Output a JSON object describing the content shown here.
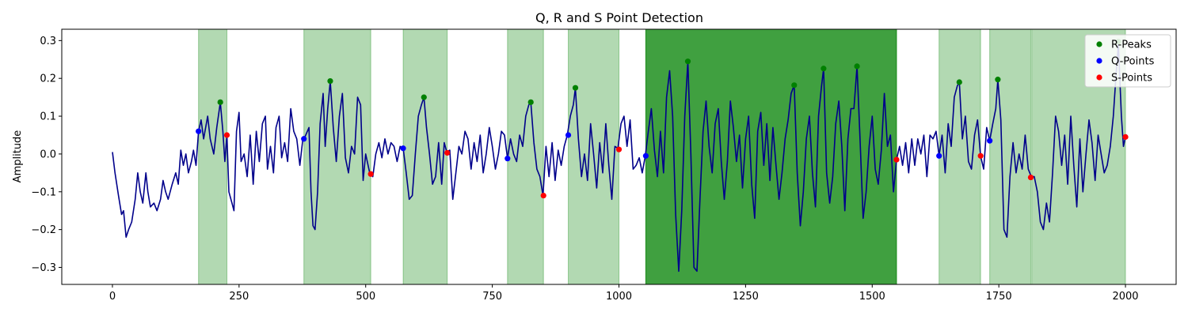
{
  "chart_data": {
    "type": "line",
    "title": "Q, R and S Point Detection",
    "xlabel": "",
    "ylabel": "Amplitude",
    "xlim": [
      -100,
      2100
    ],
    "ylim": [
      -0.345,
      0.33
    ],
    "xticks": [
      0,
      250,
      500,
      750,
      1000,
      1250,
      1500,
      1750,
      2000
    ],
    "yticks": [
      -0.3,
      -0.2,
      -0.1,
      0.0,
      0.1,
      0.2,
      0.3
    ],
    "xtick_labels": [
      "0",
      "250",
      "500",
      "750",
      "1000",
      "1250",
      "1500",
      "1750",
      "2000"
    ],
    "ytick_labels": [
      "−0.3",
      "−0.2",
      "−0.1",
      "0.0",
      "0.1",
      "0.2",
      "0.3"
    ],
    "grid": false,
    "legend_position": "top-right",
    "signal_color": "#00008b",
    "light_band_color": "#008000",
    "signal_keypoints": [
      [
        0,
        0.005
      ],
      [
        5,
        -0.05
      ],
      [
        12,
        -0.11
      ],
      [
        18,
        -0.16
      ],
      [
        22,
        -0.15
      ],
      [
        27,
        -0.22
      ],
      [
        32,
        -0.2
      ],
      [
        38,
        -0.18
      ],
      [
        45,
        -0.12
      ],
      [
        50,
        -0.05
      ],
      [
        55,
        -0.1
      ],
      [
        60,
        -0.13
      ],
      [
        66,
        -0.05
      ],
      [
        70,
        -0.1
      ],
      [
        75,
        -0.14
      ],
      [
        82,
        -0.13
      ],
      [
        88,
        -0.15
      ],
      [
        95,
        -0.12
      ],
      [
        100,
        -0.07
      ],
      [
        105,
        -0.1
      ],
      [
        110,
        -0.12
      ],
      [
        118,
        -0.08
      ],
      [
        125,
        -0.05
      ],
      [
        130,
        -0.08
      ],
      [
        135,
        0.01
      ],
      [
        140,
        -0.03
      ],
      [
        145,
        0.0
      ],
      [
        150,
        -0.05
      ],
      [
        156,
        -0.02
      ],
      [
        160,
        0.01
      ],
      [
        165,
        -0.03
      ],
      [
        170,
        0.06
      ],
      [
        175,
        0.09
      ],
      [
        180,
        0.04
      ],
      [
        188,
        0.1
      ],
      [
        193,
        0.04
      ],
      [
        200,
        0.0
      ],
      [
        206,
        0.07
      ],
      [
        213,
        0.137
      ],
      [
        218,
        0.06
      ],
      [
        222,
        -0.02
      ],
      [
        226,
        0.05
      ],
      [
        230,
        -0.1
      ],
      [
        236,
        -0.13
      ],
      [
        240,
        -0.15
      ],
      [
        245,
        0.06
      ],
      [
        250,
        0.11
      ],
      [
        254,
        -0.02
      ],
      [
        260,
        0.0
      ],
      [
        266,
        -0.06
      ],
      [
        272,
        0.05
      ],
      [
        278,
        -0.08
      ],
      [
        284,
        0.06
      ],
      [
        290,
        -0.02
      ],
      [
        296,
        0.08
      ],
      [
        302,
        0.1
      ],
      [
        306,
        -0.04
      ],
      [
        312,
        0.02
      ],
      [
        318,
        -0.05
      ],
      [
        323,
        0.07
      ],
      [
        329,
        0.1
      ],
      [
        334,
        -0.01
      ],
      [
        340,
        0.03
      ],
      [
        346,
        -0.02
      ],
      [
        352,
        0.12
      ],
      [
        358,
        0.06
      ],
      [
        364,
        0.04
      ],
      [
        370,
        -0.03
      ],
      [
        376,
        0.04
      ],
      [
        380,
        0.045
      ],
      [
        388,
        0.07
      ],
      [
        392,
        -0.1
      ],
      [
        396,
        -0.19
      ],
      [
        400,
        -0.2
      ],
      [
        405,
        -0.1
      ],
      [
        410,
        0.08
      ],
      [
        416,
        0.16
      ],
      [
        420,
        0.02
      ],
      [
        425,
        0.12
      ],
      [
        430,
        0.193
      ],
      [
        436,
        0.07
      ],
      [
        442,
        -0.02
      ],
      [
        448,
        0.1
      ],
      [
        454,
        0.16
      ],
      [
        460,
        -0.01
      ],
      [
        466,
        -0.05
      ],
      [
        472,
        0.02
      ],
      [
        478,
        0.0
      ],
      [
        484,
        0.15
      ],
      [
        490,
        0.13
      ],
      [
        495,
        -0.07
      ],
      [
        500,
        0.0
      ],
      [
        508,
        -0.05
      ],
      [
        514,
        -0.06
      ],
      [
        520,
        0.0
      ],
      [
        526,
        0.03
      ],
      [
        532,
        -0.01
      ],
      [
        538,
        0.04
      ],
      [
        544,
        0.0
      ],
      [
        550,
        0.03
      ],
      [
        556,
        0.02
      ],
      [
        562,
        -0.02
      ],
      [
        568,
        0.02
      ],
      [
        574,
        0.015
      ],
      [
        580,
        -0.05
      ],
      [
        586,
        -0.12
      ],
      [
        592,
        -0.11
      ],
      [
        598,
        0.0
      ],
      [
        604,
        0.1
      ],
      [
        610,
        0.13
      ],
      [
        615,
        0.15
      ],
      [
        620,
        0.07
      ],
      [
        626,
        0.0
      ],
      [
        632,
        -0.08
      ],
      [
        638,
        -0.06
      ],
      [
        644,
        0.03
      ],
      [
        650,
        -0.08
      ],
      [
        655,
        0.03
      ],
      [
        660,
        0.005
      ],
      [
        666,
        0.01
      ],
      [
        672,
        -0.12
      ],
      [
        678,
        -0.05
      ],
      [
        684,
        0.02
      ],
      [
        690,
        0.0
      ],
      [
        696,
        0.06
      ],
      [
        702,
        0.04
      ],
      [
        708,
        -0.04
      ],
      [
        714,
        0.03
      ],
      [
        720,
        -0.02
      ],
      [
        726,
        0.05
      ],
      [
        732,
        -0.05
      ],
      [
        738,
        0.0
      ],
      [
        744,
        0.07
      ],
      [
        750,
        0.02
      ],
      [
        756,
        -0.04
      ],
      [
        762,
        0.0
      ],
      [
        768,
        0.06
      ],
      [
        774,
        0.05
      ],
      [
        780,
        -0.012
      ],
      [
        786,
        0.04
      ],
      [
        792,
        0.0
      ],
      [
        798,
        -0.02
      ],
      [
        804,
        0.05
      ],
      [
        810,
        0.02
      ],
      [
        816,
        0.1
      ],
      [
        822,
        0.13
      ],
      [
        826,
        0.137
      ],
      [
        832,
        0.03
      ],
      [
        838,
        -0.04
      ],
      [
        844,
        -0.06
      ],
      [
        850,
        -0.11
      ],
      [
        856,
        0.02
      ],
      [
        862,
        -0.06
      ],
      [
        868,
        0.03
      ],
      [
        874,
        -0.07
      ],
      [
        880,
        0.01
      ],
      [
        886,
        -0.03
      ],
      [
        892,
        0.02
      ],
      [
        898,
        0.05
      ],
      [
        904,
        0.1
      ],
      [
        910,
        0.13
      ],
      [
        914,
        0.175
      ],
      [
        920,
        0.04
      ],
      [
        926,
        -0.06
      ],
      [
        932,
        0.0
      ],
      [
        938,
        -0.07
      ],
      [
        944,
        0.08
      ],
      [
        950,
        0.0
      ],
      [
        956,
        -0.09
      ],
      [
        962,
        0.03
      ],
      [
        968,
        -0.05
      ],
      [
        974,
        0.08
      ],
      [
        980,
        -0.03
      ],
      [
        986,
        -0.12
      ],
      [
        992,
        0.02
      ],
      [
        998,
        0.015
      ],
      [
        1004,
        0.08
      ],
      [
        1010,
        0.1
      ],
      [
        1016,
        0.02
      ],
      [
        1022,
        0.09
      ],
      [
        1028,
        -0.04
      ],
      [
        1034,
        -0.03
      ],
      [
        1040,
        -0.01
      ],
      [
        1046,
        -0.05
      ],
      [
        1052,
        -0.005
      ],
      [
        1058,
        0.06
      ],
      [
        1064,
        0.12
      ],
      [
        1070,
        0.01
      ],
      [
        1076,
        -0.06
      ],
      [
        1082,
        0.06
      ],
      [
        1088,
        -0.05
      ],
      [
        1094,
        0.15
      ],
      [
        1100,
        0.22
      ],
      [
        1106,
        0.1
      ],
      [
        1112,
        -0.16
      ],
      [
        1118,
        -0.31
      ],
      [
        1124,
        -0.15
      ],
      [
        1130,
        0.1
      ],
      [
        1136,
        0.245
      ],
      [
        1142,
        0.0
      ],
      [
        1148,
        -0.3
      ],
      [
        1154,
        -0.31
      ],
      [
        1160,
        -0.12
      ],
      [
        1166,
        0.06
      ],
      [
        1172,
        0.14
      ],
      [
        1178,
        0.02
      ],
      [
        1184,
        -0.05
      ],
      [
        1190,
        0.08
      ],
      [
        1196,
        0.12
      ],
      [
        1202,
        -0.02
      ],
      [
        1208,
        -0.12
      ],
      [
        1214,
        -0.02
      ],
      [
        1220,
        0.14
      ],
      [
        1226,
        0.07
      ],
      [
        1232,
        -0.02
      ],
      [
        1238,
        0.05
      ],
      [
        1244,
        -0.09
      ],
      [
        1250,
        0.04
      ],
      [
        1256,
        0.1
      ],
      [
        1262,
        -0.08
      ],
      [
        1268,
        -0.17
      ],
      [
        1274,
        0.06
      ],
      [
        1280,
        0.11
      ],
      [
        1286,
        -0.03
      ],
      [
        1292,
        0.08
      ],
      [
        1298,
        -0.07
      ],
      [
        1304,
        0.07
      ],
      [
        1310,
        -0.03
      ],
      [
        1316,
        -0.12
      ],
      [
        1322,
        -0.05
      ],
      [
        1328,
        0.04
      ],
      [
        1334,
        0.09
      ],
      [
        1340,
        0.16
      ],
      [
        1346,
        0.182
      ],
      [
        1352,
        -0.05
      ],
      [
        1358,
        -0.19
      ],
      [
        1364,
        -0.1
      ],
      [
        1370,
        0.04
      ],
      [
        1376,
        0.1
      ],
      [
        1382,
        -0.05
      ],
      [
        1388,
        -0.14
      ],
      [
        1394,
        0.1
      ],
      [
        1400,
        0.18
      ],
      [
        1404,
        0.226
      ],
      [
        1410,
        -0.05
      ],
      [
        1416,
        -0.13
      ],
      [
        1422,
        -0.06
      ],
      [
        1428,
        0.08
      ],
      [
        1434,
        0.14
      ],
      [
        1440,
        0.02
      ],
      [
        1446,
        -0.15
      ],
      [
        1452,
        0.04
      ],
      [
        1458,
        0.12
      ],
      [
        1464,
        0.12
      ],
      [
        1470,
        0.232
      ],
      [
        1476,
        0.04
      ],
      [
        1482,
        -0.17
      ],
      [
        1488,
        -0.1
      ],
      [
        1494,
        0.02
      ],
      [
        1500,
        0.1
      ],
      [
        1506,
        -0.04
      ],
      [
        1512,
        -0.08
      ],
      [
        1518,
        0.01
      ],
      [
        1524,
        0.16
      ],
      [
        1530,
        0.02
      ],
      [
        1536,
        0.05
      ],
      [
        1542,
        -0.1
      ],
      [
        1548,
        -0.015
      ],
      [
        1554,
        0.02
      ],
      [
        1560,
        -0.03
      ],
      [
        1566,
        0.03
      ],
      [
        1572,
        -0.05
      ],
      [
        1578,
        0.04
      ],
      [
        1584,
        -0.03
      ],
      [
        1590,
        0.04
      ],
      [
        1596,
        0.0
      ],
      [
        1602,
        0.05
      ],
      [
        1608,
        -0.06
      ],
      [
        1614,
        0.05
      ],
      [
        1620,
        0.04
      ],
      [
        1626,
        0.06
      ],
      [
        1632,
        -0.005
      ],
      [
        1638,
        0.05
      ],
      [
        1644,
        -0.05
      ],
      [
        1650,
        0.08
      ],
      [
        1656,
        0.02
      ],
      [
        1662,
        0.15
      ],
      [
        1668,
        0.18
      ],
      [
        1672,
        0.19
      ],
      [
        1678,
        0.04
      ],
      [
        1684,
        0.1
      ],
      [
        1690,
        -0.02
      ],
      [
        1696,
        -0.04
      ],
      [
        1702,
        0.05
      ],
      [
        1708,
        0.09
      ],
      [
        1714,
        -0.005
      ],
      [
        1720,
        -0.04
      ],
      [
        1726,
        0.07
      ],
      [
        1732,
        0.035
      ],
      [
        1738,
        0.08
      ],
      [
        1744,
        0.12
      ],
      [
        1748,
        0.197
      ],
      [
        1754,
        0.09
      ],
      [
        1760,
        -0.2
      ],
      [
        1766,
        -0.22
      ],
      [
        1772,
        -0.06
      ],
      [
        1778,
        0.03
      ],
      [
        1784,
        -0.05
      ],
      [
        1790,
        0.0
      ],
      [
        1796,
        -0.04
      ],
      [
        1802,
        0.05
      ],
      [
        1808,
        -0.04
      ],
      [
        1814,
        -0.06
      ],
      [
        1820,
        -0.06
      ],
      [
        1826,
        -0.1
      ],
      [
        1832,
        -0.18
      ],
      [
        1838,
        -0.2
      ],
      [
        1844,
        -0.13
      ],
      [
        1850,
        -0.18
      ],
      [
        1856,
        -0.05
      ],
      [
        1862,
        0.1
      ],
      [
        1868,
        0.06
      ],
      [
        1874,
        -0.03
      ],
      [
        1880,
        0.05
      ],
      [
        1886,
        -0.08
      ],
      [
        1892,
        0.1
      ],
      [
        1898,
        -0.03
      ],
      [
        1904,
        -0.14
      ],
      [
        1910,
        0.04
      ],
      [
        1916,
        -0.1
      ],
      [
        1922,
        0.0
      ],
      [
        1928,
        0.09
      ],
      [
        1934,
        0.03
      ],
      [
        1940,
        -0.07
      ],
      [
        1946,
        0.05
      ],
      [
        1952,
        0.0
      ],
      [
        1958,
        -0.05
      ],
      [
        1964,
        -0.03
      ],
      [
        1970,
        0.02
      ],
      [
        1976,
        0.1
      ],
      [
        1982,
        0.22
      ],
      [
        1986,
        0.29
      ],
      [
        1992,
        0.1
      ],
      [
        1996,
        0.02
      ],
      [
        2000,
        0.045
      ]
    ],
    "bands": [
      {
        "x0": 170,
        "x1": 226,
        "strength": "light"
      },
      {
        "x0": 378,
        "x1": 510,
        "strength": "light"
      },
      {
        "x0": 574,
        "x1": 661,
        "strength": "light"
      },
      {
        "x0": 780,
        "x1": 851,
        "strength": "light"
      },
      {
        "x0": 900,
        "x1": 1000,
        "strength": "light"
      },
      {
        "x0": 1053,
        "x1": 1548,
        "strength": "dark"
      },
      {
        "x0": 1632,
        "x1": 1714,
        "strength": "light"
      },
      {
        "x0": 1732,
        "x1": 1813,
        "strength": "light"
      },
      {
        "x0": 1815,
        "x1": 2000,
        "strength": "light"
      }
    ],
    "series": [
      {
        "name": "R-Peaks",
        "color": "#008000",
        "points": [
          [
            213,
            0.137
          ],
          [
            430,
            0.193
          ],
          [
            615,
            0.15
          ],
          [
            826,
            0.137
          ],
          [
            914,
            0.175
          ],
          [
            1136,
            0.245
          ],
          [
            1346,
            0.182
          ],
          [
            1404,
            0.226
          ],
          [
            1470,
            0.232
          ],
          [
            1672,
            0.19
          ],
          [
            1748,
            0.197
          ],
          [
            1986,
            0.297
          ]
        ]
      },
      {
        "name": "Q-Points",
        "color": "#0000ff",
        "points": [
          [
            170,
            0.06
          ],
          [
            378,
            0.04
          ],
          [
            574,
            0.015
          ],
          [
            780,
            -0.012
          ],
          [
            900,
            0.05
          ],
          [
            1053,
            -0.005
          ],
          [
            1632,
            -0.005
          ],
          [
            1732,
            0.035
          ]
        ]
      },
      {
        "name": "S-Points",
        "color": "#ff0000",
        "points": [
          [
            226,
            0.05
          ],
          [
            510,
            -0.053
          ],
          [
            661,
            0.003
          ],
          [
            851,
            -0.11
          ],
          [
            1000,
            0.012
          ],
          [
            1548,
            -0.015
          ],
          [
            1714,
            -0.005
          ],
          [
            1813,
            -0.062
          ],
          [
            2000,
            0.045
          ]
        ]
      }
    ]
  }
}
